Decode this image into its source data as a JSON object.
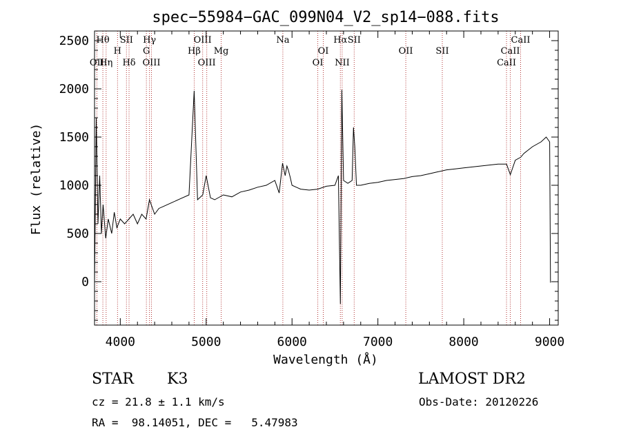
{
  "chart_data": {
    "type": "line",
    "title": "spec−55984−GAC_099N04_V2_sp14−088.fits",
    "xlabel": "Wavelength (Å)",
    "ylabel": "Flux (relative)",
    "xlim": [
      3700,
      9100
    ],
    "ylim": [
      -450,
      2600
    ],
    "x_ticks": [
      4000,
      5000,
      6000,
      7000,
      8000,
      9000
    ],
    "y_ticks": [
      0,
      500,
      1000,
      1500,
      2000,
      2500
    ],
    "grid": false,
    "series": [
      {
        "x": [
          3700,
          3720,
          3740,
          3760,
          3780,
          3800,
          3830,
          3860,
          3900,
          3930,
          3960,
          4000,
          4050,
          4100,
          4150,
          4200,
          4250,
          4300,
          4340,
          4400,
          4450,
          4500,
          4600,
          4700,
          4800,
          4860,
          4900,
          4960,
          5000,
          5050,
          5100,
          5200,
          5300,
          5400,
          5500,
          5600,
          5700,
          5800,
          5850,
          5890,
          5920,
          5940,
          5960,
          5980,
          6000,
          6050,
          6100,
          6200,
          6300,
          6400,
          6500,
          6540,
          6563,
          6580,
          6600,
          6650,
          6700,
          6716,
          6731,
          6750,
          6800,
          6900,
          7000,
          7100,
          7200,
          7300,
          7400,
          7500,
          7600,
          7700,
          7800,
          7900,
          8000,
          8100,
          8200,
          8300,
          8400,
          8498,
          8542,
          8600,
          8662,
          8700,
          8800,
          8900,
          8960,
          9000,
          9010
        ],
        "y": [
          -10,
          1700,
          600,
          1100,
          500,
          800,
          450,
          650,
          500,
          720,
          560,
          650,
          600,
          650,
          700,
          600,
          700,
          650,
          850,
          700,
          760,
          780,
          820,
          860,
          900,
          1980,
          850,
          900,
          1100,
          870,
          850,
          900,
          880,
          930,
          950,
          980,
          1000,
          1050,
          920,
          1230,
          1100,
          1200,
          1150,
          1080,
          1000,
          980,
          960,
          950,
          960,
          990,
          1000,
          1100,
          -230,
          1990,
          1050,
          1020,
          1050,
          1600,
          1400,
          1000,
          1000,
          1020,
          1030,
          1050,
          1060,
          1070,
          1090,
          1100,
          1120,
          1140,
          1160,
          1170,
          1180,
          1190,
          1200,
          1210,
          1220,
          1220,
          1110,
          1260,
          1290,
          1330,
          1400,
          1450,
          1500,
          1450,
          -10
        ]
      }
    ],
    "spectral_lines": [
      {
        "label": "OII",
        "wavelength": 3727,
        "row": 3
      },
      {
        "label": "Hη",
        "wavelength": 3835,
        "row": 3
      },
      {
        "label": "Hθ",
        "wavelength": 3797,
        "row": 1
      },
      {
        "label": "H",
        "wavelength": 3968,
        "row": 2
      },
      {
        "label": "SII",
        "wavelength": 4072,
        "row": 1
      },
      {
        "label": "Hδ",
        "wavelength": 4102,
        "row": 3
      },
      {
        "label": "Hγ",
        "wavelength": 4340,
        "row": 1
      },
      {
        "label": "G",
        "wavelength": 4304,
        "row": 2
      },
      {
        "label": "OIII",
        "wavelength": 4363,
        "row": 3
      },
      {
        "label": "OIII",
        "wavelength": 4959,
        "row": 1
      },
      {
        "label": "Hβ",
        "wavelength": 4861,
        "row": 2
      },
      {
        "label": "OIII",
        "wavelength": 5007,
        "row": 3
      },
      {
        "label": "Mg",
        "wavelength": 5175,
        "row": 2
      },
      {
        "label": "Na",
        "wavelength": 5893,
        "row": 1
      },
      {
        "label": "OI",
        "wavelength": 6364,
        "row": 2
      },
      {
        "label": "OI",
        "wavelength": 6300,
        "row": 3
      },
      {
        "label": "Hα",
        "wavelength": 6563,
        "row": 1
      },
      {
        "label": "SII",
        "wavelength": 6724,
        "row": 1
      },
      {
        "label": "NII",
        "wavelength": 6584,
        "row": 3
      },
      {
        "label": "OII",
        "wavelength": 7325,
        "row": 2
      },
      {
        "label": "SII",
        "wavelength": 7750,
        "row": 2
      },
      {
        "label": "CaII",
        "wavelength": 8662,
        "row": 1
      },
      {
        "label": "CaII",
        "wavelength": 8542,
        "row": 2
      },
      {
        "label": "CaII",
        "wavelength": 8498,
        "row": 3
      }
    ]
  },
  "info": {
    "class": "STAR",
    "subclass": "K3",
    "survey": "LAMOST DR2",
    "cz": "cz = 21.8 ± 1.1 km/s",
    "obs_date": "Obs-Date: 20120226",
    "radec": "RA =  98.14051, DEC =   5.47983"
  }
}
